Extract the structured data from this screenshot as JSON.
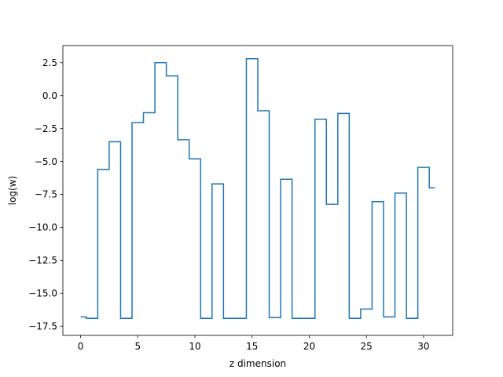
{
  "chart_data": {
    "type": "line",
    "drawstyle": "steps-mid",
    "xlabel": "z dimension",
    "ylabel": "log(w)",
    "xlim": [
      -1.55,
      32.55
    ],
    "ylim": [
      -18.2,
      3.8
    ],
    "xticks": [
      0,
      5,
      10,
      15,
      20,
      25,
      30
    ],
    "xtick_labels": [
      "0",
      "5",
      "10",
      "15",
      "20",
      "25",
      "30"
    ],
    "yticks": [
      2.5,
      0.0,
      -2.5,
      -5.0,
      -7.5,
      -10.0,
      -12.5,
      -15.0,
      -17.5
    ],
    "ytick_labels": [
      "2.5",
      "0.0",
      "−2.5",
      "−5.0",
      "−7.5",
      "−10.0",
      "−12.5",
      "−15.0",
      "−17.5"
    ],
    "grid": false,
    "series": [
      {
        "color": "#1f77b4",
        "x": [
          0,
          1,
          2,
          3,
          4,
          5,
          6,
          7,
          8,
          9,
          10,
          11,
          12,
          13,
          14,
          15,
          16,
          17,
          18,
          19,
          20,
          21,
          22,
          23,
          24,
          25,
          26,
          27,
          28,
          29,
          30,
          31
        ],
        "values": [
          -16.8,
          -16.9,
          -5.6,
          -3.5,
          -16.9,
          -2.05,
          -1.3,
          2.5,
          1.5,
          -3.35,
          -4.8,
          -16.9,
          -6.7,
          -16.9,
          -16.9,
          2.8,
          -1.15,
          -16.85,
          -6.35,
          -16.9,
          -16.9,
          -1.8,
          -8.25,
          -1.35,
          -16.9,
          -16.2,
          -8.05,
          -16.8,
          -7.4,
          -16.9,
          -5.45,
          -7.0
        ]
      }
    ]
  }
}
